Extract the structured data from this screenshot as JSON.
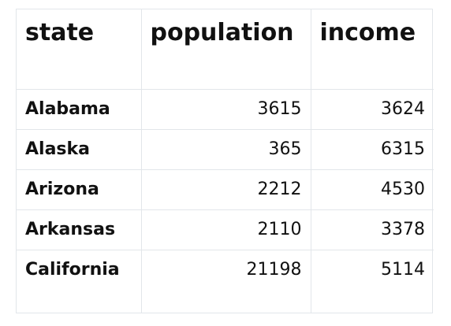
{
  "table": {
    "headers": [
      "state",
      "population",
      "income"
    ],
    "rows": [
      {
        "state": "Alabama",
        "population": "3615",
        "income": "3624"
      },
      {
        "state": "Alaska",
        "population": "365",
        "income": "6315"
      },
      {
        "state": "Arizona",
        "population": "2212",
        "income": "4530"
      },
      {
        "state": "Arkansas",
        "population": "2110",
        "income": "3378"
      },
      {
        "state": "California",
        "population": "21198",
        "income": "5114"
      }
    ]
  },
  "colors": {
    "grid_line": "#e2e6ea",
    "text": "#111111",
    "background": "#ffffff"
  }
}
